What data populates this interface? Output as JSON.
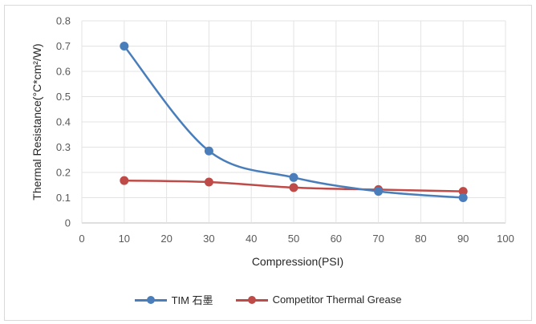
{
  "chart_data": {
    "type": "line",
    "title": "",
    "xlabel": "Compression(PSI)",
    "ylabel": "Thermal Resistance(°C*cm²/W)",
    "xlim": [
      0,
      100
    ],
    "ylim": [
      0,
      0.8
    ],
    "xticks": [
      "0",
      "10",
      "20",
      "30",
      "40",
      "50",
      "60",
      "70",
      "80",
      "90",
      "100"
    ],
    "yticks": [
      "0",
      "0.1",
      "0.2",
      "0.3",
      "0.4",
      "0.5",
      "0.6",
      "0.7",
      "0.8"
    ],
    "grid": true,
    "legend_position": "bottom",
    "smooth": true,
    "x": [
      10,
      30,
      50,
      70,
      90
    ],
    "series": [
      {
        "name": "TIM 石墨",
        "color": "#4472c4",
        "values": [
          0.7,
          0.285,
          0.18,
          0.125,
          0.1
        ]
      },
      {
        "name": "Competitor Thermal Grease",
        "color": "#c0504d",
        "values": [
          0.168,
          0.162,
          0.14,
          0.132,
          0.125
        ]
      }
    ]
  }
}
